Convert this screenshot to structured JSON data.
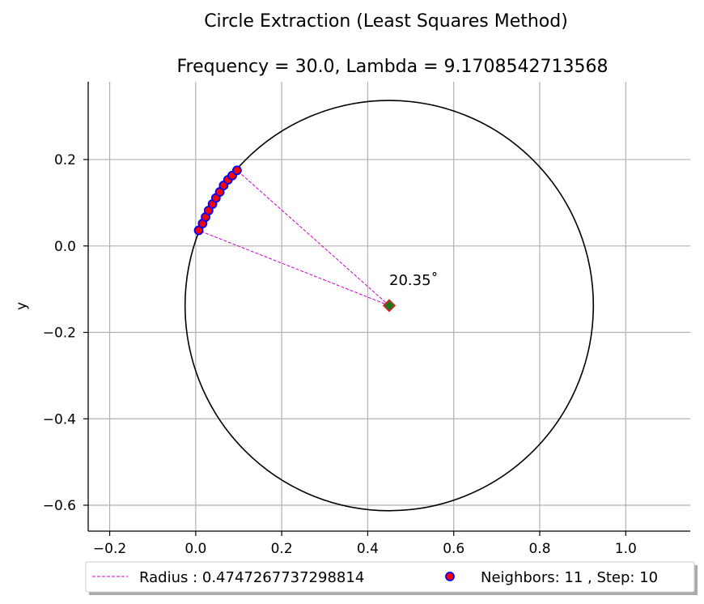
{
  "chart_data": {
    "type": "scatter",
    "title": "Circle Extraction (Least Squares Method)",
    "subtitle": "Frequency = 30.0, Lambda = 9.1708542713568",
    "xlabel": "",
    "ylabel": "y",
    "xlim": [
      -0.25,
      1.15
    ],
    "ylim": [
      -0.66,
      0.38
    ],
    "xticks": [
      -0.2,
      0.0,
      0.2,
      0.4,
      0.6,
      0.8,
      1.0
    ],
    "xtick_labels": [
      "−0.2",
      "0.0",
      "0.2",
      "0.4",
      "0.6",
      "0.8",
      "1.0"
    ],
    "yticks": [
      0.2,
      0.0,
      -0.2,
      -0.4,
      -0.6
    ],
    "ytick_labels": [
      "0.2",
      "0.0",
      "−0.2",
      "−0.4",
      "−0.6"
    ],
    "grid": true,
    "circle": {
      "cx": 0.45,
      "cy": -0.138,
      "r": 0.4747267737298814,
      "color": "#000000"
    },
    "center_marker": {
      "x": 0.45,
      "y": -0.138,
      "fill": "#1a7a1a",
      "edge": "#d62728"
    },
    "neighbors": {
      "name": "Neighbors: 11 , Step: 10",
      "fill": "#ff0000",
      "edge": "#0000ff",
      "points": [
        {
          "x": 0.007,
          "y": 0.036
        },
        {
          "x": 0.016,
          "y": 0.052
        },
        {
          "x": 0.023,
          "y": 0.067
        },
        {
          "x": 0.03,
          "y": 0.082
        },
        {
          "x": 0.039,
          "y": 0.097
        },
        {
          "x": 0.047,
          "y": 0.111
        },
        {
          "x": 0.056,
          "y": 0.125
        },
        {
          "x": 0.065,
          "y": 0.14
        },
        {
          "x": 0.075,
          "y": 0.153
        },
        {
          "x": 0.085,
          "y": 0.163
        },
        {
          "x": 0.096,
          "y": 0.175
        }
      ]
    },
    "radius_lines": {
      "name": "Radius : 0.4747267737298814",
      "color": "#cc00cc",
      "from": {
        "x": 0.45,
        "y": -0.138
      },
      "to": [
        {
          "x": 0.007,
          "y": 0.036
        },
        {
          "x": 0.096,
          "y": 0.175
        }
      ]
    },
    "annotation": {
      "text": "20.35˚",
      "x": 0.45,
      "y": -0.09
    },
    "legend": {
      "placement": "bottom-center",
      "entries": [
        "Radius : 0.4747267737298814",
        "Neighbors: 11 , Step: 10"
      ]
    }
  }
}
